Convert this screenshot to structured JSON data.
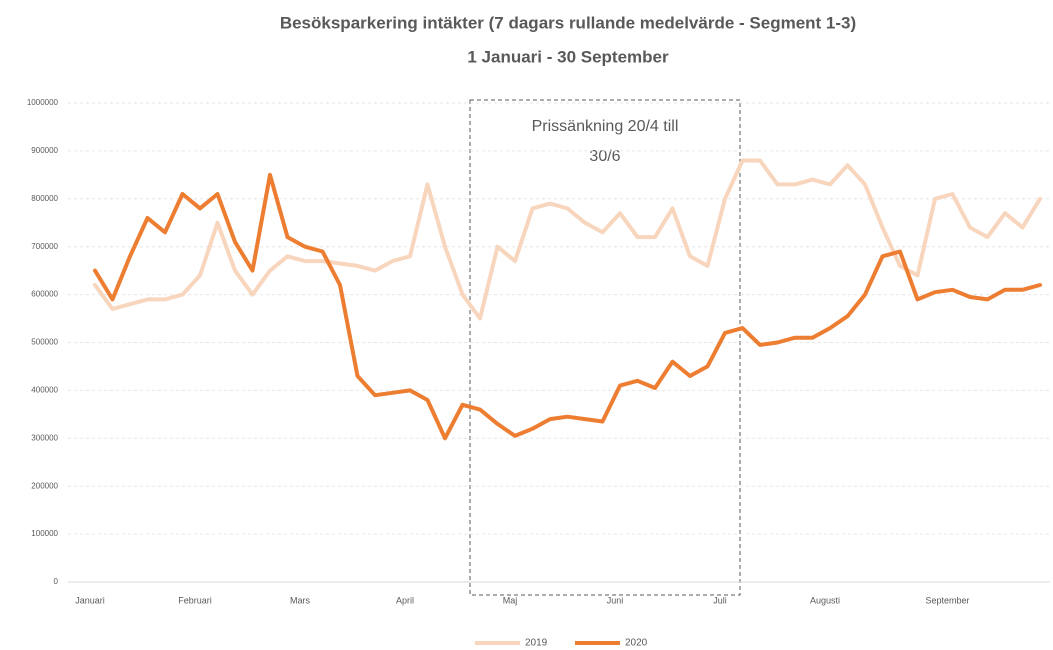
{
  "chart_data": {
    "type": "line",
    "title": "Besöksparkering intäkter (7 dagars rullande medelvärde - Segment 1-3)",
    "subtitle": "1 Januari  - 30 September",
    "annotation": [
      "Prissänkning 20/4 till",
      "30/6"
    ],
    "categories": [
      "Januari",
      null,
      null,
      null,
      null,
      null,
      "Februari",
      null,
      null,
      null,
      null,
      null,
      "Mars",
      null,
      null,
      null,
      null,
      null,
      "April",
      null,
      null,
      null,
      null,
      null,
      "Maj",
      null,
      null,
      null,
      null,
      null,
      "Juni",
      null,
      null,
      null,
      null,
      null,
      "Juli",
      null,
      null,
      null,
      null,
      null,
      "Augusti",
      null,
      null,
      null,
      null,
      null,
      null,
      "September",
      null,
      null,
      null,
      null,
      null
    ],
    "series": [
      {
        "name": "2019",
        "color": "#f8d5bd",
        "values": [
          620000,
          570000,
          580000,
          590000,
          590000,
          600000,
          640000,
          750000,
          650000,
          600000,
          650000,
          680000,
          670000,
          670000,
          665000,
          660000,
          650000,
          670000,
          680000,
          830000,
          700000,
          600000,
          550000,
          700000,
          670000,
          780000,
          790000,
          780000,
          750000,
          730000,
          770000,
          720000,
          720000,
          780000,
          680000,
          660000,
          800000,
          880000,
          880000,
          830000,
          830000,
          840000,
          830000,
          870000,
          830000,
          740000,
          660000,
          640000,
          800000,
          810000,
          740000,
          720000,
          770000,
          740000,
          800000
        ]
      },
      {
        "name": "2020",
        "color": "#ed7d31",
        "values": [
          650000,
          590000,
          680000,
          760000,
          730000,
          810000,
          780000,
          810000,
          710000,
          650000,
          850000,
          720000,
          700000,
          690000,
          620000,
          430000,
          390000,
          395000,
          400000,
          380000,
          300000,
          370000,
          360000,
          330000,
          305000,
          320000,
          340000,
          345000,
          340000,
          335000,
          410000,
          420000,
          405000,
          460000,
          430000,
          450000,
          520000,
          530000,
          495000,
          500000,
          510000,
          510000,
          530000,
          555000,
          600000,
          680000,
          690000,
          590000,
          605000,
          610000,
          595000,
          590000,
          610000,
          610000,
          620000
        ]
      }
    ],
    "ylim": [
      0,
      1000000
    ],
    "yticks": [
      0,
      100000,
      200000,
      300000,
      400000,
      500000,
      600000,
      700000,
      800000,
      900000,
      1000000
    ],
    "grid": true,
    "legend": "bottom"
  }
}
